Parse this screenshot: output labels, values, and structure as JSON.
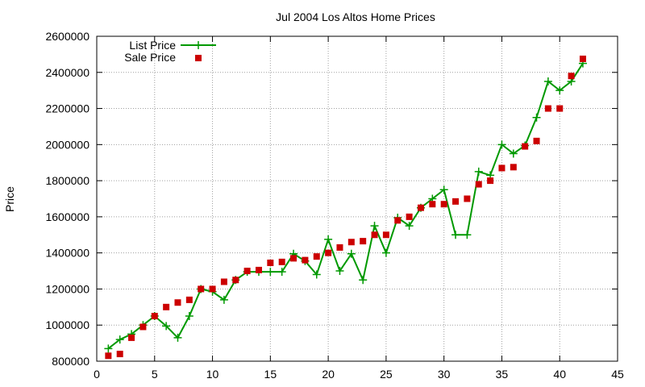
{
  "chart_data": {
    "type": "line",
    "title": "Jul 2004 Los Altos Home Prices",
    "xlabel": "",
    "ylabel": "Price",
    "xlim": [
      0,
      45
    ],
    "ylim": [
      800000,
      2600000
    ],
    "x_ticks": [
      0,
      5,
      10,
      15,
      20,
      25,
      30,
      35,
      40,
      45
    ],
    "y_ticks": [
      800000,
      1000000,
      1200000,
      1400000,
      1600000,
      1800000,
      2000000,
      2200000,
      2400000,
      2600000
    ],
    "x_tick_labels": [
      "0",
      "5",
      "10",
      "15",
      "20",
      "25",
      "30",
      "35",
      "40",
      "45"
    ],
    "y_tick_labels": [
      "800000",
      "1000000",
      "1200000",
      "1400000",
      "1600000",
      "1800000",
      "2000000",
      "2200000",
      "2400000",
      "2600000"
    ],
    "grid": true,
    "legend_position": "top-left",
    "series": [
      {
        "name": "List Price",
        "style": "line-with-plus-markers",
        "color": "#009900",
        "x": [
          1,
          2,
          3,
          4,
          5,
          6,
          7,
          8,
          9,
          10,
          11,
          12,
          13,
          14,
          15,
          16,
          17,
          18,
          19,
          20,
          21,
          22,
          23,
          24,
          25,
          26,
          27,
          28,
          29,
          30,
          31,
          32,
          33,
          34,
          35,
          36,
          37,
          38,
          39,
          40,
          41,
          42
        ],
        "values": [
          870000,
          920000,
          950000,
          1000000,
          1050000,
          995000,
          930000,
          1050000,
          1200000,
          1185000,
          1140000,
          1250000,
          1295000,
          1295000,
          1295000,
          1295000,
          1395000,
          1355000,
          1280000,
          1475000,
          1300000,
          1395000,
          1250000,
          1550000,
          1400000,
          1595000,
          1550000,
          1650000,
          1700000,
          1750000,
          1500000,
          1500000,
          1850000,
          1830000,
          2000000,
          1950000,
          1995000,
          2150000,
          2350000,
          2300000,
          2350000,
          2450000
        ]
      },
      {
        "name": "Sale Price",
        "style": "square-markers",
        "color": "#cc0000",
        "x": [
          1,
          2,
          3,
          4,
          5,
          6,
          7,
          8,
          9,
          10,
          11,
          12,
          13,
          14,
          15,
          16,
          17,
          18,
          19,
          20,
          21,
          22,
          23,
          24,
          25,
          26,
          27,
          28,
          29,
          30,
          31,
          32,
          33,
          34,
          35,
          36,
          37,
          38,
          39,
          40,
          41,
          42
        ],
        "values": [
          830000,
          840000,
          930000,
          990000,
          1050000,
          1100000,
          1125000,
          1140000,
          1200000,
          1200000,
          1240000,
          1250000,
          1300000,
          1305000,
          1345000,
          1350000,
          1370000,
          1360000,
          1380000,
          1400000,
          1430000,
          1460000,
          1465000,
          1500000,
          1500000,
          1580000,
          1600000,
          1650000,
          1670000,
          1670000,
          1685000,
          1700000,
          1780000,
          1800000,
          1870000,
          1875000,
          1990000,
          2020000,
          2200000,
          2200000,
          2380000,
          2475000
        ]
      }
    ]
  }
}
